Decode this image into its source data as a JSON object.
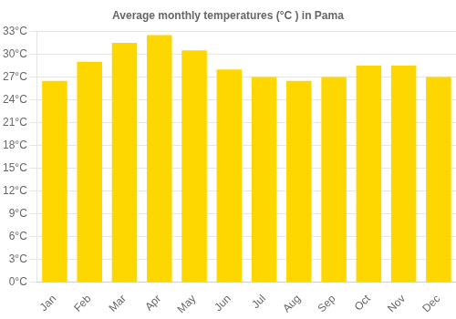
{
  "chart_data": {
    "type": "bar",
    "title": "Average monthly temperatures (°C ) in Pama",
    "categories": [
      "Jan",
      "Feb",
      "Mar",
      "Apr",
      "May",
      "Jun",
      "Jul",
      "Aug",
      "Sep",
      "Oct",
      "Nov",
      "Dec"
    ],
    "values": [
      26.5,
      29.0,
      31.5,
      32.5,
      30.5,
      28.0,
      27.0,
      26.5,
      27.0,
      28.5,
      28.5,
      27.0
    ],
    "color": "#FFD700",
    "ylim": [
      0,
      33
    ],
    "yticks": [
      {
        "value": 0,
        "label": "0°C"
      },
      {
        "value": 3,
        "label": "3°C"
      },
      {
        "value": 6,
        "label": "6°C"
      },
      {
        "value": 9,
        "label": "9°C"
      },
      {
        "value": 12,
        "label": "12°C"
      },
      {
        "value": 15,
        "label": "15°C"
      },
      {
        "value": 18,
        "label": "18°C"
      },
      {
        "value": 21,
        "label": "21°C"
      },
      {
        "value": 24,
        "label": "24°C"
      },
      {
        "value": 27,
        "label": "27°C"
      },
      {
        "value": 30,
        "label": "30°C"
      },
      {
        "value": 33,
        "label": "33°C"
      }
    ],
    "grid": true
  }
}
